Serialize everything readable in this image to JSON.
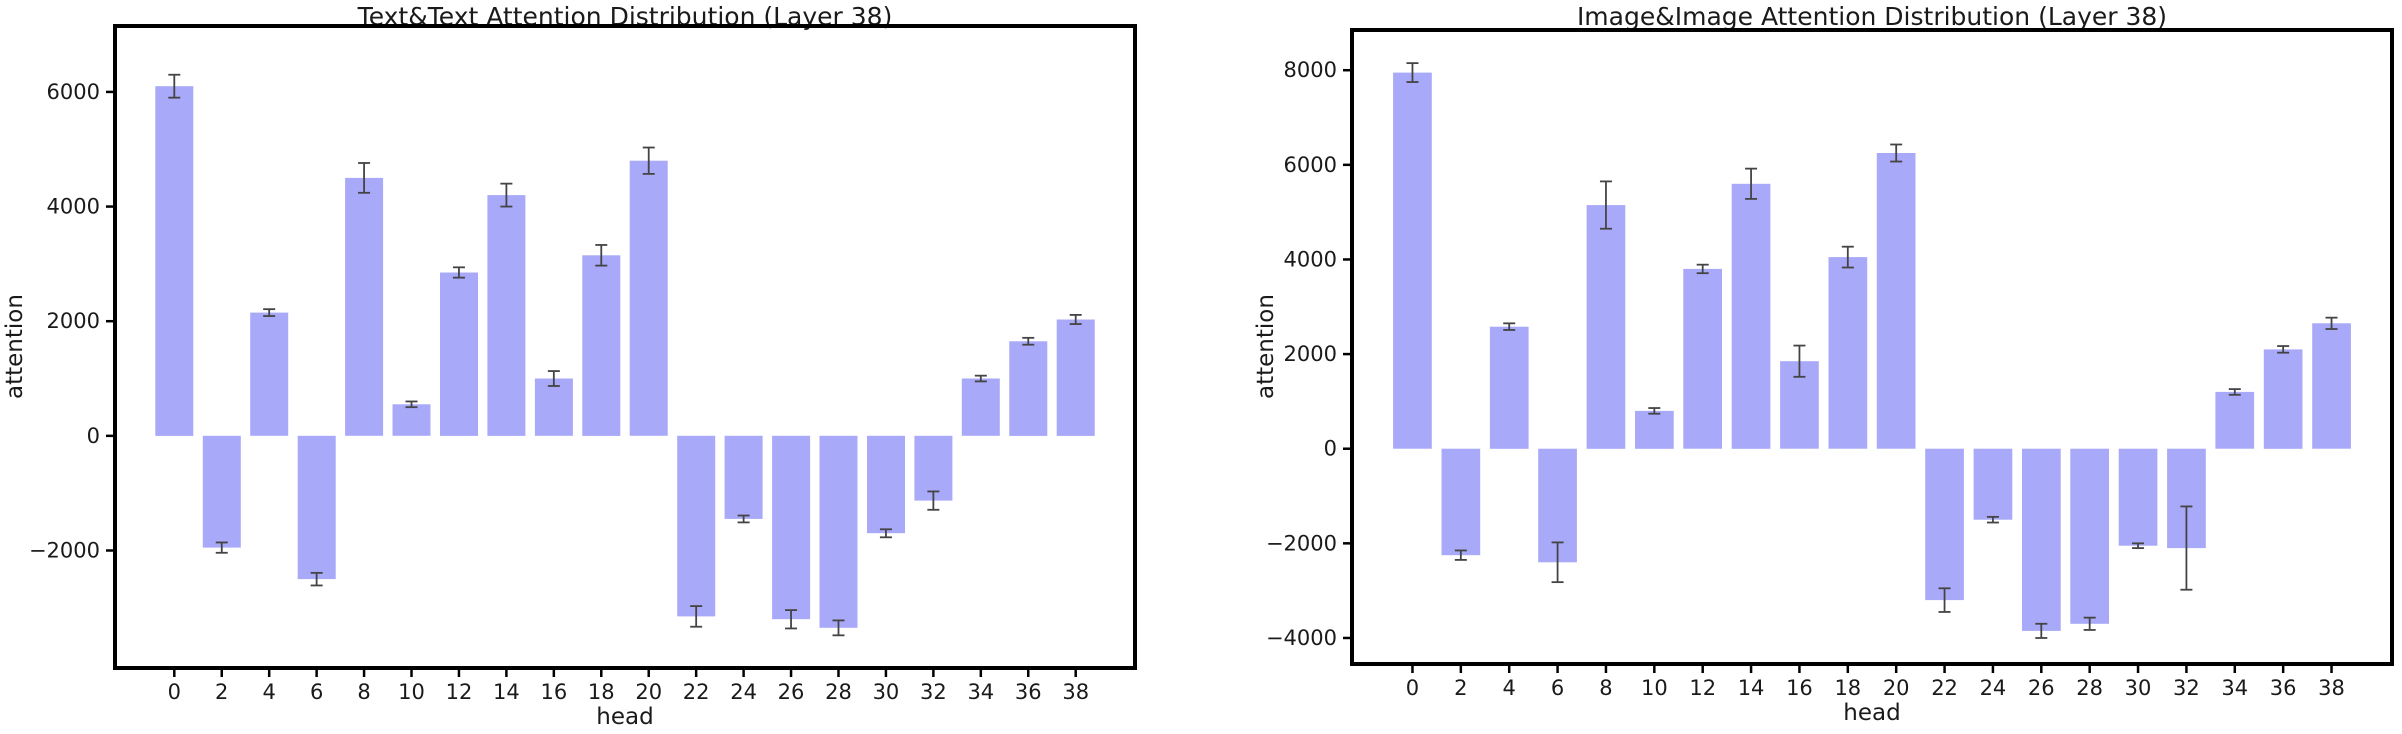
{
  "chart_data": [
    {
      "type": "bar",
      "title": "Text&Text Attention Distribution (Layer 38)",
      "xlabel": "head",
      "ylabel": "attention",
      "categories": [
        0,
        2,
        4,
        6,
        8,
        10,
        12,
        14,
        16,
        18,
        20,
        22,
        24,
        26,
        28,
        30,
        32,
        34,
        36,
        38
      ],
      "xtick_labels": [
        "0",
        "2",
        "4",
        "6",
        "8",
        "10",
        "12",
        "14",
        "16",
        "18",
        "20",
        "22",
        "24",
        "26",
        "28",
        "30",
        "32",
        "34",
        "36",
        "38"
      ],
      "values": [
        6100,
        -1950,
        2150,
        -2500,
        4500,
        550,
        2850,
        4200,
        1000,
        3150,
        4800,
        -3150,
        -1450,
        -3200,
        -3350,
        -1700,
        -1130,
        1000,
        1650,
        2030
      ],
      "errors": [
        200,
        90,
        60,
        110,
        260,
        50,
        90,
        200,
        130,
        180,
        230,
        180,
        60,
        160,
        130,
        70,
        160,
        50,
        60,
        80
      ],
      "yticks": [
        -2000,
        0,
        2000,
        4000,
        6000
      ],
      "ytick_labels": [
        "−2000",
        "0",
        "2000",
        "4000",
        "6000"
      ],
      "ylim": [
        -4050,
        7150
      ],
      "xlim": [
        -2.5,
        40.5
      ],
      "bar_width_units": 1.6,
      "grid": false,
      "legend": null,
      "bar_color": "#a9a9f9",
      "error_color": "#444444",
      "axis_color": "#000000"
    },
    {
      "type": "bar",
      "title": "Image&Image Attention Distribution (Layer 38)",
      "xlabel": "head",
      "ylabel": "attention",
      "categories": [
        0,
        2,
        4,
        6,
        8,
        10,
        12,
        14,
        16,
        18,
        20,
        22,
        24,
        26,
        28,
        30,
        32,
        34,
        36,
        38
      ],
      "xtick_labels": [
        "0",
        "2",
        "4",
        "6",
        "8",
        "10",
        "12",
        "14",
        "16",
        "18",
        "20",
        "22",
        "24",
        "26",
        "28",
        "30",
        "32",
        "34",
        "36",
        "38"
      ],
      "values": [
        7950,
        -2250,
        2580,
        -2400,
        5150,
        800,
        3800,
        5600,
        1850,
        4050,
        6250,
        -3200,
        -1500,
        -3850,
        -3700,
        -2050,
        -2100,
        1200,
        2100,
        2650
      ],
      "errors": [
        200,
        100,
        70,
        420,
        500,
        60,
        90,
        320,
        330,
        220,
        180,
        250,
        60,
        150,
        130,
        50,
        880,
        60,
        70,
        120
      ],
      "yticks": [
        -4000,
        -2000,
        0,
        2000,
        4000,
        6000,
        8000
      ],
      "ytick_labels": [
        "−4000",
        "−2000",
        "0",
        "2000",
        "4000",
        "6000",
        "8000"
      ],
      "ylim": [
        -4550,
        8850
      ],
      "xlim": [
        -2.5,
        40.5
      ],
      "bar_width_units": 1.6,
      "grid": false,
      "legend": null,
      "bar_color": "#a9a9f9",
      "error_color": "#444444",
      "axis_color": "#000000"
    }
  ]
}
